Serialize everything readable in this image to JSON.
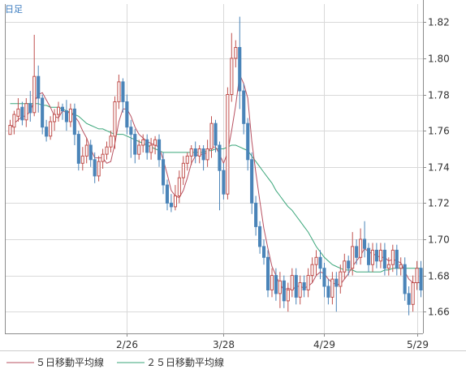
{
  "chart_data": {
    "type": "candlestick",
    "period_label": "日足",
    "y_ticks": [
      1.82,
      1.8,
      1.78,
      1.76,
      1.74,
      1.72,
      1.7,
      1.68,
      1.66
    ],
    "ylim": [
      1.648,
      1.83
    ],
    "x_ticks": [
      {
        "label": "2/26",
        "index": 29
      },
      {
        "label": "3/28",
        "index": 53
      },
      {
        "label": "4/29",
        "index": 78
      },
      {
        "label": "5/29",
        "index": 101
      }
    ],
    "legend": [
      {
        "label": "５日移動平均線",
        "color": "#b85060"
      },
      {
        "label": "２５日移動平均線",
        "color": "#3aa67a"
      }
    ],
    "colors": {
      "up": "#c0504d",
      "down": "#4a84b8",
      "ma5": "#b85060",
      "ma25": "#3aa67a",
      "grid": "#d9d9d9",
      "frame": "#8c8c8c"
    },
    "candles": [
      [
        1.758,
        1.763,
        1.758,
        1.766
      ],
      [
        1.762,
        1.769,
        1.758,
        1.771
      ],
      [
        1.768,
        1.772,
        1.765,
        1.778
      ],
      [
        1.773,
        1.766,
        1.763,
        1.776
      ],
      [
        1.766,
        1.775,
        1.762,
        1.778
      ],
      [
        1.775,
        1.77,
        1.765,
        1.782
      ],
      [
        1.77,
        1.79,
        1.768,
        1.813
      ],
      [
        1.79,
        1.778,
        1.77,
        1.796
      ],
      [
        1.778,
        1.762,
        1.758,
        1.78
      ],
      [
        1.762,
        1.757,
        1.754,
        1.766
      ],
      [
        1.757,
        1.765,
        1.755,
        1.768
      ],
      [
        1.765,
        1.769,
        1.76,
        1.772
      ],
      [
        1.769,
        1.773,
        1.765,
        1.776
      ],
      [
        1.773,
        1.771,
        1.766,
        1.775
      ],
      [
        1.771,
        1.765,
        1.76,
        1.777
      ],
      [
        1.765,
        1.772,
        1.762,
        1.775
      ],
      [
        1.772,
        1.758,
        1.752,
        1.775
      ],
      [
        1.758,
        1.742,
        1.738,
        1.76
      ],
      [
        1.742,
        1.746,
        1.738,
        1.751
      ],
      [
        1.746,
        1.752,
        1.742,
        1.756
      ],
      [
        1.752,
        1.744,
        1.74,
        1.755
      ],
      [
        1.744,
        1.735,
        1.731,
        1.748
      ],
      [
        1.735,
        1.743,
        1.732,
        1.746
      ],
      [
        1.743,
        1.747,
        1.739,
        1.75
      ],
      [
        1.747,
        1.751,
        1.744,
        1.754
      ],
      [
        1.751,
        1.757,
        1.748,
        1.76
      ],
      [
        1.757,
        1.776,
        1.75,
        1.779
      ],
      [
        1.776,
        1.787,
        1.772,
        1.791
      ],
      [
        1.787,
        1.776,
        1.77,
        1.789
      ],
      [
        1.776,
        1.762,
        1.758,
        1.78
      ],
      [
        1.762,
        1.758,
        1.745,
        1.766
      ],
      [
        1.758,
        1.747,
        1.742,
        1.761
      ],
      [
        1.747,
        1.752,
        1.744,
        1.755
      ],
      [
        1.752,
        1.755,
        1.748,
        1.758
      ],
      [
        1.755,
        1.748,
        1.744,
        1.758
      ],
      [
        1.748,
        1.752,
        1.744,
        1.756
      ],
      [
        1.752,
        1.755,
        1.747,
        1.757
      ],
      [
        1.755,
        1.744,
        1.74,
        1.758
      ],
      [
        1.744,
        1.73,
        1.725,
        1.748
      ],
      [
        1.73,
        1.72,
        1.716,
        1.733
      ],
      [
        1.72,
        1.718,
        1.715,
        1.725
      ],
      [
        1.718,
        1.724,
        1.716,
        1.73
      ],
      [
        1.724,
        1.734,
        1.72,
        1.738
      ],
      [
        1.734,
        1.742,
        1.73,
        1.746
      ],
      [
        1.742,
        1.746,
        1.738,
        1.748
      ],
      [
        1.746,
        1.75,
        1.741,
        1.752
      ],
      [
        1.75,
        1.746,
        1.742,
        1.754
      ],
      [
        1.746,
        1.75,
        1.742,
        1.752
      ],
      [
        1.75,
        1.744,
        1.738,
        1.752
      ],
      [
        1.744,
        1.75,
        1.74,
        1.755
      ],
      [
        1.75,
        1.764,
        1.745,
        1.768
      ],
      [
        1.764,
        1.752,
        1.748,
        1.766
      ],
      [
        1.752,
        1.738,
        1.716,
        1.754
      ],
      [
        1.738,
        1.725,
        1.722,
        1.742
      ],
      [
        1.725,
        1.78,
        1.722,
        1.784
      ],
      [
        1.78,
        1.8,
        1.776,
        1.814
      ],
      [
        1.8,
        1.806,
        1.795,
        1.81
      ],
      [
        1.806,
        1.782,
        1.772,
        1.823
      ],
      [
        1.782,
        1.764,
        1.758,
        1.786
      ],
      [
        1.764,
        1.744,
        1.738,
        1.767
      ],
      [
        1.744,
        1.72,
        1.714,
        1.748
      ],
      [
        1.72,
        1.707,
        1.702,
        1.724
      ],
      [
        1.707,
        1.696,
        1.692,
        1.71
      ],
      [
        1.696,
        1.69,
        1.686,
        1.7
      ],
      [
        1.69,
        1.672,
        1.668,
        1.694
      ],
      [
        1.672,
        1.68,
        1.668,
        1.684
      ],
      [
        1.68,
        1.67,
        1.666,
        1.684
      ],
      [
        1.67,
        1.677,
        1.662,
        1.682
      ],
      [
        1.677,
        1.666,
        1.662,
        1.68
      ],
      [
        1.666,
        1.672,
        1.66,
        1.676
      ],
      [
        1.672,
        1.68,
        1.668,
        1.684
      ],
      [
        1.68,
        1.668,
        1.664,
        1.684
      ],
      [
        1.668,
        1.676,
        1.664,
        1.68
      ],
      [
        1.676,
        1.672,
        1.668,
        1.68
      ],
      [
        1.672,
        1.68,
        1.668,
        1.684
      ],
      [
        1.68,
        1.686,
        1.676,
        1.69
      ],
      [
        1.686,
        1.69,
        1.68,
        1.694
      ],
      [
        1.69,
        1.684,
        1.678,
        1.694
      ],
      [
        1.684,
        1.674,
        1.668,
        1.687
      ],
      [
        1.674,
        1.668,
        1.664,
        1.678
      ],
      [
        1.668,
        1.678,
        1.664,
        1.682
      ],
      [
        1.678,
        1.674,
        1.66,
        1.682
      ],
      [
        1.674,
        1.682,
        1.67,
        1.686
      ],
      [
        1.682,
        1.688,
        1.678,
        1.692
      ],
      [
        1.688,
        1.684,
        1.68,
        1.691
      ],
      [
        1.684,
        1.696,
        1.68,
        1.704
      ],
      [
        1.696,
        1.69,
        1.686,
        1.7
      ],
      [
        1.69,
        1.7,
        1.686,
        1.706
      ],
      [
        1.7,
        1.695,
        1.69,
        1.71
      ],
      [
        1.695,
        1.686,
        1.682,
        1.698
      ],
      [
        1.686,
        1.694,
        1.682,
        1.698
      ],
      [
        1.694,
        1.688,
        1.684,
        1.698
      ],
      [
        1.688,
        1.694,
        1.684,
        1.698
      ],
      [
        1.694,
        1.684,
        1.68,
        1.698
      ],
      [
        1.684,
        1.686,
        1.68,
        1.69
      ],
      [
        1.686,
        1.694,
        1.682,
        1.697
      ],
      [
        1.694,
        1.684,
        1.68,
        1.697
      ],
      [
        1.684,
        1.686,
        1.68,
        1.69
      ],
      [
        1.686,
        1.67,
        1.666,
        1.69
      ],
      [
        1.67,
        1.664,
        1.658,
        1.674
      ],
      [
        1.664,
        1.676,
        1.66,
        1.68
      ],
      [
        1.676,
        1.684,
        1.672,
        1.688
      ],
      [
        1.684,
        1.672,
        1.668,
        1.688
      ]
    ],
    "ma5": [
      1.761,
      1.764,
      1.766,
      1.768,
      1.768,
      1.771,
      1.776,
      1.78,
      1.781,
      1.777,
      1.773,
      1.768,
      1.767,
      1.771,
      1.77,
      1.77,
      1.768,
      1.765,
      1.76,
      1.756,
      1.75,
      1.745,
      1.745,
      1.745,
      1.742,
      1.743,
      1.753,
      1.765,
      1.772,
      1.772,
      1.768,
      1.762,
      1.758,
      1.756,
      1.754,
      1.753,
      1.752,
      1.751,
      1.744,
      1.736,
      1.727,
      1.724,
      1.723,
      1.727,
      1.734,
      1.742,
      1.746,
      1.747,
      1.747,
      1.748,
      1.751,
      1.751,
      1.747,
      1.742,
      1.748,
      1.76,
      1.774,
      1.791,
      1.786,
      1.778,
      1.754,
      1.737,
      1.721,
      1.706,
      1.695,
      1.685,
      1.68,
      1.675,
      1.672,
      1.673,
      1.672,
      1.674,
      1.674,
      1.673,
      1.674,
      1.676,
      1.68,
      1.682,
      1.681,
      1.678,
      1.676,
      1.675,
      1.675,
      1.678,
      1.681,
      1.685,
      1.688,
      1.691,
      1.695,
      1.693,
      1.692,
      1.691,
      1.69,
      1.69,
      1.688,
      1.689,
      1.688,
      1.687,
      1.682,
      1.678,
      1.676,
      1.676,
      1.676
    ],
    "ma25": [
      1.775,
      1.775,
      1.775,
      1.775,
      1.775,
      1.775,
      1.775,
      1.775,
      1.774,
      1.774,
      1.773,
      1.773,
      1.773,
      1.772,
      1.771,
      1.77,
      1.769,
      1.768,
      1.766,
      1.764,
      1.763,
      1.762,
      1.761,
      1.761,
      1.76,
      1.759,
      1.758,
      1.758,
      1.758,
      1.757,
      1.756,
      1.755,
      1.754,
      1.753,
      1.752,
      1.751,
      1.75,
      1.749,
      1.748,
      1.748,
      1.748,
      1.748,
      1.748,
      1.748,
      1.748,
      1.748,
      1.748,
      1.748,
      1.748,
      1.749,
      1.749,
      1.75,
      1.75,
      1.75,
      1.751,
      1.752,
      1.752,
      1.751,
      1.75,
      1.749,
      1.746,
      1.743,
      1.74,
      1.737,
      1.734,
      1.731,
      1.727,
      1.724,
      1.721,
      1.718,
      1.716,
      1.713,
      1.71,
      1.707,
      1.704,
      1.7,
      1.696,
      1.693,
      1.69,
      1.688,
      1.686,
      1.685,
      1.684,
      1.683,
      1.683,
      1.683,
      1.682,
      1.682,
      1.682,
      1.682,
      1.682,
      1.682,
      1.682,
      1.683,
      1.683,
      1.684,
      1.684,
      1.684,
      1.684,
      1.684,
      1.684,
      1.684,
      1.684
    ]
  }
}
